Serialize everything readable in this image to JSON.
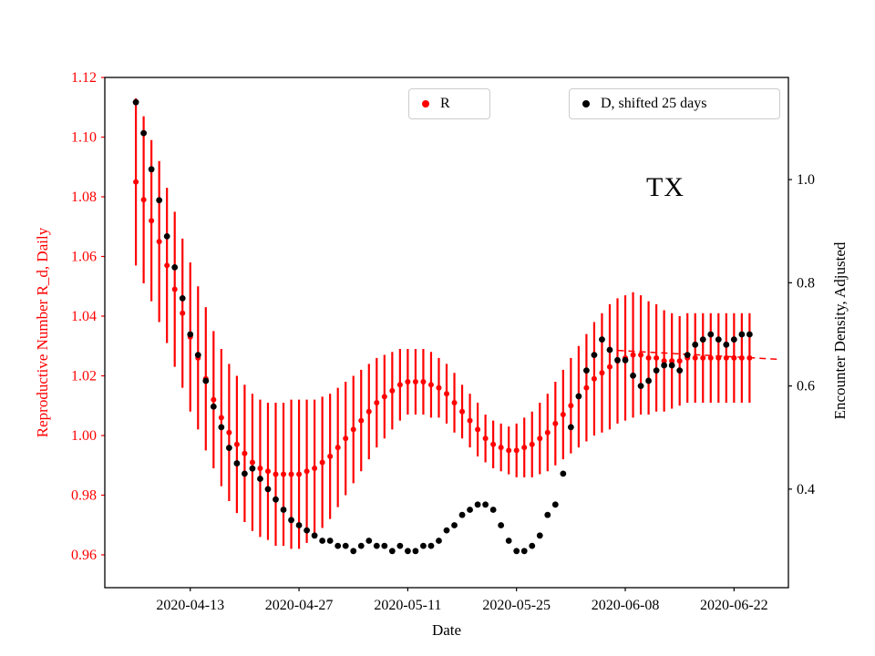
{
  "figure": {
    "background": "#ffffff",
    "frame_color": "#000000"
  },
  "chart_data": {
    "type": "scatter",
    "title": "",
    "annotation": "TX",
    "xlabel": "Date",
    "ylabel_left": "Reproductive Number R_d, Daily",
    "ylabel_right": "Encounter Density, Adjusted",
    "legend_position": "top, two boxes inside axes",
    "grid": false,
    "x_tick_days": [
      7,
      21,
      35,
      49,
      63,
      77
    ],
    "x_tick_labels": [
      "2020-04-13",
      "2020-04-27",
      "2020-05-11",
      "2020-05-25",
      "2020-06-08",
      "2020-06-22"
    ],
    "y_left_ticks": [
      1.12,
      1.1,
      1.08,
      1.06,
      1.04,
      1.02,
      1.0,
      0.98,
      0.96
    ],
    "y_left_tick_labels": [
      "1.12",
      "1.10",
      "1.08",
      "1.06",
      "1.04",
      "1.02",
      "1.00",
      "0.98",
      "0.96"
    ],
    "y_right_ticks": [
      1.0,
      0.8,
      0.6,
      0.4
    ],
    "y_right_tick_labels": [
      "1.0",
      "0.8",
      "0.6",
      "0.4"
    ],
    "xlim_days": [
      -4,
      84
    ],
    "ylim_left": [
      0.949,
      1.12
    ],
    "ylim_right": [
      0.209,
      1.198
    ],
    "start_date": "2020-04-06",
    "dates": [
      "2020-04-06",
      "2020-04-07",
      "2020-04-08",
      "2020-04-09",
      "2020-04-10",
      "2020-04-11",
      "2020-04-12",
      "2020-04-13",
      "2020-04-14",
      "2020-04-15",
      "2020-04-16",
      "2020-04-17",
      "2020-04-18",
      "2020-04-19",
      "2020-04-20",
      "2020-04-21",
      "2020-04-22",
      "2020-04-23",
      "2020-04-24",
      "2020-04-25",
      "2020-04-26",
      "2020-04-27",
      "2020-04-28",
      "2020-04-29",
      "2020-04-30",
      "2020-05-01",
      "2020-05-02",
      "2020-05-03",
      "2020-05-04",
      "2020-05-05",
      "2020-05-06",
      "2020-05-07",
      "2020-05-08",
      "2020-05-09",
      "2020-05-10",
      "2020-05-11",
      "2020-05-12",
      "2020-05-13",
      "2020-05-14",
      "2020-05-15",
      "2020-05-16",
      "2020-05-17",
      "2020-05-18",
      "2020-05-19",
      "2020-05-20",
      "2020-05-21",
      "2020-05-22",
      "2020-05-23",
      "2020-05-24",
      "2020-05-25",
      "2020-05-26",
      "2020-05-27",
      "2020-05-28",
      "2020-05-29",
      "2020-05-30",
      "2020-05-31",
      "2020-06-01",
      "2020-06-02",
      "2020-06-03",
      "2020-06-04",
      "2020-06-05",
      "2020-06-06",
      "2020-06-07",
      "2020-06-08",
      "2020-06-09",
      "2020-06-10",
      "2020-06-11",
      "2020-06-12",
      "2020-06-13",
      "2020-06-14",
      "2020-06-15",
      "2020-06-16",
      "2020-06-17",
      "2020-06-18",
      "2020-06-19",
      "2020-06-20",
      "2020-06-21",
      "2020-06-22",
      "2020-06-23",
      "2020-06-24"
    ],
    "series": [
      {
        "name": "R",
        "axis": "left",
        "color": "#ff0000",
        "marker": "circle",
        "values": [
          1.085,
          1.079,
          1.072,
          1.065,
          1.057,
          1.049,
          1.041,
          1.033,
          1.026,
          1.019,
          1.012,
          1.006,
          1.001,
          0.997,
          0.994,
          0.991,
          0.989,
          0.988,
          0.987,
          0.987,
          0.987,
          0.987,
          0.988,
          0.989,
          0.991,
          0.993,
          0.996,
          0.999,
          1.002,
          1.005,
          1.008,
          1.011,
          1.013,
          1.015,
          1.017,
          1.018,
          1.018,
          1.018,
          1.017,
          1.016,
          1.014,
          1.011,
          1.008,
          1.005,
          1.002,
          0.999,
          0.997,
          0.996,
          0.995,
          0.995,
          0.996,
          0.997,
          0.999,
          1.001,
          1.004,
          1.007,
          1.01,
          1.013,
          1.016,
          1.019,
          1.021,
          1.023,
          1.025,
          1.026,
          1.027,
          1.027,
          1.026,
          1.026,
          1.025,
          1.025,
          1.025,
          1.026,
          1.026,
          1.026,
          1.026,
          1.026,
          1.026,
          1.026,
          1.026,
          1.026
        ],
        "errors": [
          0.028,
          0.028,
          0.027,
          0.027,
          0.026,
          0.026,
          0.025,
          0.025,
          0.024,
          0.024,
          0.023,
          0.023,
          0.023,
          0.023,
          0.023,
          0.023,
          0.023,
          0.023,
          0.024,
          0.024,
          0.025,
          0.025,
          0.024,
          0.023,
          0.022,
          0.021,
          0.02,
          0.019,
          0.018,
          0.017,
          0.016,
          0.015,
          0.014,
          0.013,
          0.012,
          0.011,
          0.011,
          0.011,
          0.011,
          0.01,
          0.01,
          0.01,
          0.009,
          0.009,
          0.009,
          0.008,
          0.008,
          0.008,
          0.008,
          0.009,
          0.01,
          0.011,
          0.012,
          0.013,
          0.014,
          0.015,
          0.016,
          0.017,
          0.018,
          0.019,
          0.02,
          0.021,
          0.021,
          0.021,
          0.021,
          0.02,
          0.019,
          0.018,
          0.017,
          0.016,
          0.015,
          0.015,
          0.015,
          0.015,
          0.015,
          0.015,
          0.015,
          0.015,
          0.015,
          0.015
        ]
      },
      {
        "name": "D, shifted 25 days",
        "axis": "right",
        "color": "#000000",
        "marker": "circle",
        "values": [
          1.15,
          1.09,
          1.02,
          0.96,
          0.89,
          0.83,
          0.77,
          0.7,
          0.66,
          0.61,
          0.56,
          0.52,
          0.48,
          0.45,
          0.43,
          0.44,
          0.42,
          0.4,
          0.38,
          0.36,
          0.34,
          0.33,
          0.32,
          0.31,
          0.3,
          0.3,
          0.29,
          0.29,
          0.28,
          0.29,
          0.3,
          0.29,
          0.29,
          0.28,
          0.29,
          0.28,
          0.28,
          0.29,
          0.29,
          0.3,
          0.32,
          0.33,
          0.35,
          0.36,
          0.37,
          0.37,
          0.36,
          0.33,
          0.3,
          0.28,
          0.28,
          0.29,
          0.31,
          0.35,
          0.37,
          0.43,
          0.52,
          0.58,
          0.63,
          0.66,
          0.69,
          0.67,
          0.65,
          0.65,
          0.62,
          0.6,
          0.61,
          0.63,
          0.64,
          0.64,
          0.63,
          0.66,
          0.68,
          0.69,
          0.7,
          0.69,
          0.68,
          0.69,
          0.7,
          0.7
        ]
      }
    ],
    "trend_line": {
      "axis": "left",
      "color": "#ff0000",
      "style": "dashed",
      "x_days": [
        62,
        83
      ],
      "values": [
        1.0285,
        1.0255
      ]
    }
  }
}
